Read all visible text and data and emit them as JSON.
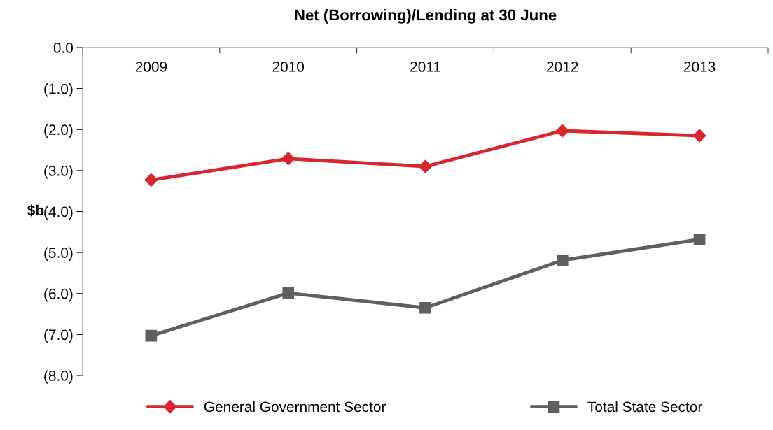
{
  "chart_data": {
    "type": "line",
    "title": "Net (Borrowing)/Lending at 30 June",
    "ylabel": "$b",
    "categories": [
      "2009",
      "2010",
      "2011",
      "2012",
      "2013"
    ],
    "series": [
      {
        "name": "General Government Sector",
        "color": "#d9262c",
        "marker": "diamond",
        "values": [
          -3.23,
          -2.71,
          -2.9,
          -2.03,
          -2.15
        ]
      },
      {
        "name": "Total State Sector",
        "color": "#5f5f5f",
        "marker": "square",
        "values": [
          -7.03,
          -5.99,
          -6.35,
          -5.19,
          -4.68
        ]
      }
    ],
    "ylim": [
      -8,
      0
    ],
    "yticks": [
      {
        "value": -8,
        "label": "(8.0)"
      },
      {
        "value": -7,
        "label": "(7.0)"
      },
      {
        "value": -6,
        "label": "(6.0)"
      },
      {
        "value": -5,
        "label": "(5.0)"
      },
      {
        "value": -4,
        "label": "(4.0)"
      },
      {
        "value": -3,
        "label": "(3.0)"
      },
      {
        "value": -2,
        "label": "(2.0)"
      },
      {
        "value": -1,
        "label": "(1.0)"
      },
      {
        "value": 0,
        "label": "0.0"
      }
    ],
    "grid": false,
    "legend": "bottom",
    "line_style": "solid"
  }
}
